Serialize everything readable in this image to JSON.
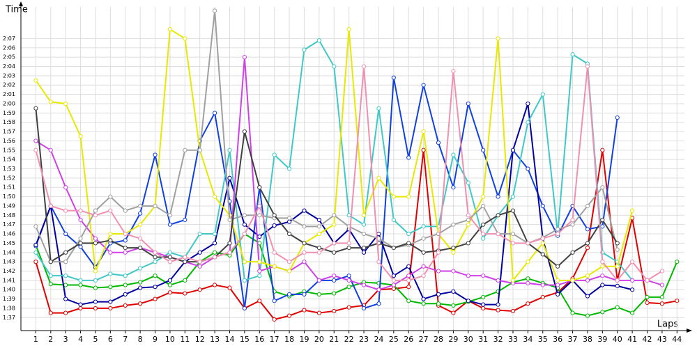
{
  "chart_data": {
    "type": "line",
    "ylabel": "Time",
    "xlabel": "Laps",
    "x": [
      1,
      2,
      3,
      4,
      5,
      6,
      7,
      8,
      9,
      10,
      11,
      12,
      13,
      14,
      15,
      16,
      17,
      18,
      19,
      20,
      21,
      22,
      23,
      24,
      25,
      26,
      27,
      28,
      29,
      30,
      31,
      32,
      33,
      34,
      35,
      36,
      37,
      38,
      39,
      40,
      41,
      42,
      43,
      44
    ],
    "xlim": [
      0,
      44.5
    ],
    "xticks": [
      1,
      2,
      3,
      4,
      5,
      6,
      7,
      8,
      9,
      10,
      11,
      12,
      13,
      14,
      15,
      16,
      17,
      18,
      19,
      20,
      21,
      22,
      23,
      24,
      25,
      26,
      27,
      28,
      29,
      30,
      31,
      32,
      33,
      34,
      35,
      36,
      37,
      38,
      39,
      40,
      41,
      42,
      43,
      44
    ],
    "ylim": [
      95.6,
      130.4
    ],
    "yticks": [
      {
        "value": 97,
        "label": "1:37"
      },
      {
        "value": 98,
        "label": "1:38"
      },
      {
        "value": 99,
        "label": "1:39"
      },
      {
        "value": 100,
        "label": "1:40"
      },
      {
        "value": 101,
        "label": "1:41"
      },
      {
        "value": 102,
        "label": "1:42"
      },
      {
        "value": 103,
        "label": "1:43"
      },
      {
        "value": 104,
        "label": "1:44"
      },
      {
        "value": 105,
        "label": "1:45"
      },
      {
        "value": 106,
        "label": "1:46"
      },
      {
        "value": 107,
        "label": "1:47"
      },
      {
        "value": 108,
        "label": "1:48"
      },
      {
        "value": 109,
        "label": "1:49"
      },
      {
        "value": 110,
        "label": "1:50"
      },
      {
        "value": 111,
        "label": "1:51"
      },
      {
        "value": 112,
        "label": "1:52"
      },
      {
        "value": 113,
        "label": "1:53"
      },
      {
        "value": 114,
        "label": "1:54"
      },
      {
        "value": 115,
        "label": "1:55"
      },
      {
        "value": 116,
        "label": "1:56"
      },
      {
        "value": 117,
        "label": "1:57"
      },
      {
        "value": 118,
        "label": "1:58"
      },
      {
        "value": 119,
        "label": "1:59"
      },
      {
        "value": 120,
        "label": "2:00"
      },
      {
        "value": 121,
        "label": "2:01"
      },
      {
        "value": 122,
        "label": "2:02"
      },
      {
        "value": 123,
        "label": "2:03"
      },
      {
        "value": 124,
        "label": "2:04"
      },
      {
        "value": 125,
        "label": "2:05"
      },
      {
        "value": 126,
        "label": "2:06"
      },
      {
        "value": 127,
        "label": "2:07"
      }
    ],
    "grid": true,
    "series": [
      {
        "color": "#e00000",
        "values": [
          103,
          97.5,
          97.5,
          98,
          98,
          98,
          98.3,
          98.5,
          99,
          99.7,
          99.6,
          100,
          100.5,
          100.2,
          98,
          98.8,
          96.8,
          97.2,
          97.8,
          97.5,
          97.7,
          98.1,
          98.3,
          100,
          100.1,
          100.3,
          115,
          98.3,
          97.5,
          98.8,
          98,
          97.8,
          97.7,
          98.5,
          99.2,
          99.7,
          101.2,
          104.5,
          115,
          101,
          107.7,
          98.6,
          98.5,
          98.8
        ]
      },
      {
        "color": "#00b800",
        "values": [
          104.8,
          100.6,
          100.5,
          100.5,
          100.2,
          100.3,
          100.5,
          100.8,
          101.5,
          100.5,
          101,
          103,
          104,
          103.7,
          106,
          105,
          99.8,
          99.3,
          99.8,
          99.5,
          99.6,
          100.3,
          100.8,
          100.7,
          100.5,
          98.8,
          98.5,
          98.5,
          98.3,
          98.7,
          99.2,
          99.8,
          100.8,
          101.2,
          100.7,
          100.2,
          97.5,
          97.2,
          97.6,
          98.1,
          97.5,
          99.2,
          99.2,
          103
        ]
      },
      {
        "color": "#1040e0",
        "values": [
          104.7,
          109,
          106,
          104.6,
          102.4,
          105,
          105.3,
          108.2,
          114.5,
          107,
          107.5,
          116,
          119,
          109.5,
          98,
          111,
          98.8,
          99.5,
          99.5,
          101,
          101,
          101.5,
          98,
          98.5,
          122.8,
          114.2,
          122,
          115.8,
          111,
          120,
          115,
          110,
          115,
          113,
          109,
          105.8,
          109,
          106.5,
          106.8,
          118.5,
          null,
          null,
          null,
          null
        ]
      },
      {
        "color": "#0000a0",
        "values": [
          104.8,
          109,
          99,
          98.4,
          98.7,
          98.7,
          99.5,
          100.2,
          100.3,
          101,
          103,
          104,
          105,
          112,
          107,
          105.7,
          106.9,
          107.3,
          108.5,
          107.5,
          105,
          106.5,
          104,
          106,
          101.5,
          102.5,
          99,
          99.5,
          99.8,
          98.8,
          98.4,
          98.4,
          115,
          120,
          105.5,
          99.5,
          101,
          99.3,
          100.5,
          100.4,
          100,
          null,
          null,
          null
        ]
      },
      {
        "color": "#40c8c8",
        "values": [
          104,
          101.5,
          101.5,
          101,
          101,
          101.7,
          101.5,
          102.3,
          103,
          104,
          103.5,
          106,
          106,
          115,
          101,
          101.5,
          114.5,
          113,
          125.8,
          126.8,
          124,
          108,
          107,
          119.5,
          107.5,
          106,
          106.8,
          106.8,
          114.5,
          111.5,
          105.5,
          108,
          110,
          118,
          121,
          106,
          125.3,
          124.3,
          104,
          103,
          101,
          null,
          null,
          null
        ]
      },
      {
        "color": "#d040e8",
        "values": [
          116,
          115,
          111,
          107.5,
          105.5,
          104,
          104,
          104.5,
          104,
          103.5,
          103,
          102.5,
          103.5,
          104,
          125,
          102,
          102.5,
          102,
          103,
          101,
          101.5,
          101,
          100.5,
          100,
          100.5,
          101.5,
          102.5,
          102,
          102,
          101.5,
          101.5,
          101,
          100.7,
          100.7,
          100.5,
          100.5,
          101,
          101,
          101.5,
          101,
          101,
          101,
          100.5,
          null
        ]
      },
      {
        "color": "#e8e800",
        "values": [
          122.5,
          120.2,
          120,
          116.5,
          102,
          106,
          106,
          107,
          109,
          128,
          127,
          115,
          110,
          108,
          103,
          103,
          102.5,
          102,
          105,
          106,
          107,
          128,
          108,
          112,
          110,
          110,
          117,
          106,
          104,
          107,
          110,
          127,
          101,
          103,
          105,
          101,
          101,
          101.5,
          102.5,
          102.5,
          108.5,
          null,
          null,
          null
        ]
      },
      {
        "color": "#a0a0a0",
        "values": [
          106.8,
          103,
          103,
          105.5,
          108.5,
          110,
          108.5,
          109,
          109,
          108,
          115,
          115,
          130,
          107.5,
          108,
          108,
          107.7,
          107.7,
          106.8,
          106.8,
          108,
          106.8,
          106,
          105.5,
          104.5,
          104.8,
          105.5,
          106,
          107,
          107.5,
          109,
          106,
          106,
          105,
          105.6,
          106.5,
          107,
          109,
          111,
          104.3,
          null,
          null,
          null,
          null
        ]
      },
      {
        "color": "#404040",
        "values": [
          119.5,
          103,
          104,
          105,
          105,
          105.3,
          104.5,
          104.5,
          103.5,
          103.5,
          103,
          103,
          103.5,
          105,
          117,
          111,
          108,
          106,
          105,
          104.5,
          104,
          104.5,
          104.5,
          105,
          104.5,
          105,
          104,
          104.2,
          104.5,
          105,
          107,
          108,
          108.5,
          105,
          103.8,
          102.5,
          104,
          105,
          107.5,
          105,
          null,
          101,
          null,
          null
        ]
      },
      {
        "color": "#f090b0",
        "values": [
          115,
          109,
          108.5,
          108.5,
          108,
          108.5,
          106,
          105.5,
          104,
          103,
          103.5,
          103,
          103.5,
          104,
          106,
          109,
          104,
          103,
          104,
          104,
          105,
          105,
          124,
          103,
          101,
          101,
          101.5,
          104,
          123.5,
          108,
          106,
          106,
          105,
          105,
          105.5,
          106,
          107.5,
          124,
          103,
          101,
          103,
          101,
          102,
          null
        ]
      }
    ]
  }
}
